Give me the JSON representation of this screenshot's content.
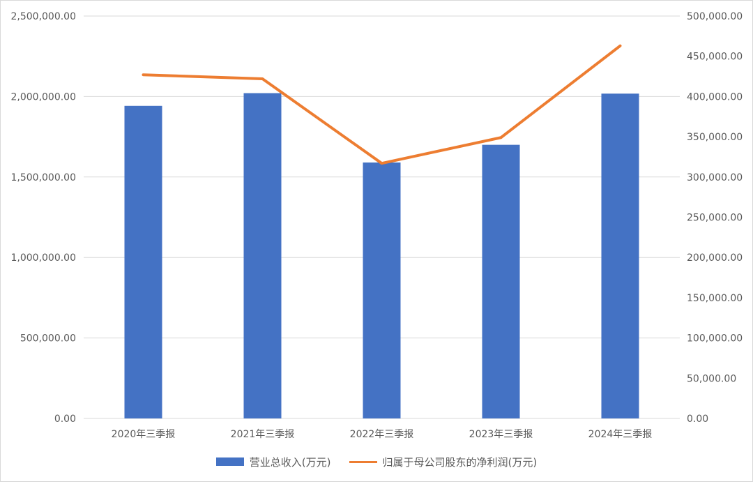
{
  "chart_data": {
    "type": "bar",
    "categories": [
      "2020年三季报",
      "2021年三季报",
      "2022年三季报",
      "2023年三季报",
      "2024年三季报"
    ],
    "series": [
      {
        "name": "营业总收入(万元)",
        "type": "bar",
        "axis": "left",
        "color": "#4472c4",
        "values": [
          1942000,
          2021000,
          1590000,
          1700000,
          2018000
        ]
      },
      {
        "name": "归属于母公司股东的净利润(万元)",
        "type": "line",
        "axis": "right",
        "color": "#ed7d31",
        "values": [
          427000,
          422000,
          317000,
          349000,
          463000
        ]
      }
    ],
    "y_left": {
      "lim": [
        0,
        2500000
      ],
      "ticks": [
        "0.00",
        "500,000.00",
        "1,000,000.00",
        "1,500,000.00",
        "2,000,000.00",
        "2,500,000.00"
      ]
    },
    "y_right": {
      "lim": [
        0,
        500000
      ],
      "ticks": [
        "0.00",
        "50,000.00",
        "100,000.00",
        "150,000.00",
        "200,000.00",
        "250,000.00",
        "300,000.00",
        "350,000.00",
        "400,000.00",
        "450,000.00",
        "500,000.00"
      ]
    },
    "grid": true,
    "legend_position": "bottom"
  },
  "legend": {
    "bar_label": "营业总收入(万元)",
    "line_label": "归属于母公司股东的净利润(万元)"
  }
}
